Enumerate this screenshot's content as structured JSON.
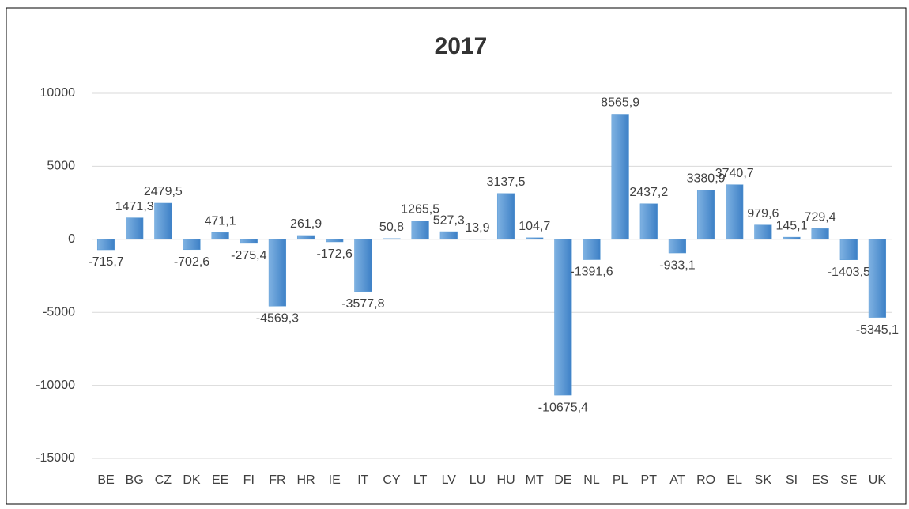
{
  "chart_data": {
    "type": "bar",
    "title": "2017",
    "categories": [
      "BE",
      "BG",
      "CZ",
      "DK",
      "EE",
      "FI",
      "FR",
      "HR",
      "IE",
      "IT",
      "CY",
      "LT",
      "LV",
      "LU",
      "HU",
      "MT",
      "DE",
      "NL",
      "PL",
      "PT",
      "AT",
      "RO",
      "EL",
      "SK",
      "SI",
      "ES",
      "SE",
      "UK"
    ],
    "values": [
      -715.7,
      1471.3,
      2479.5,
      -702.6,
      471.1,
      -275.4,
      -4569.3,
      261.9,
      -172.6,
      -3577.8,
      50.8,
      1265.5,
      527.3,
      13.9,
      3137.5,
      104.7,
      -10675.4,
      -1391.6,
      8565.9,
      2437.2,
      -933.1,
      3380.9,
      3740.7,
      979.6,
      145.1,
      729.4,
      -1403.5,
      -5345.1
    ],
    "value_labels": [
      "-715,7",
      "1471,3",
      "2479,5",
      "-702,6",
      "471,1",
      "-275,4",
      "-4569,3",
      "261,9",
      "-172,6",
      "-3577,8",
      "50,8",
      "1265,5",
      "527,3",
      "13,9",
      "3137,5",
      "104,7",
      "-10675,4",
      "-1391,6",
      "8565,9",
      "2437,2",
      "-933,1",
      "3380,9",
      "3740,7",
      "979,6",
      "145,1",
      "729,4",
      "-1403,5",
      "-5345,1"
    ],
    "color": "#5b9bd5",
    "ylim": [
      -15000,
      10000
    ],
    "yticks": [
      -15000,
      -10000,
      -5000,
      0,
      5000,
      10000
    ],
    "grid": true
  }
}
